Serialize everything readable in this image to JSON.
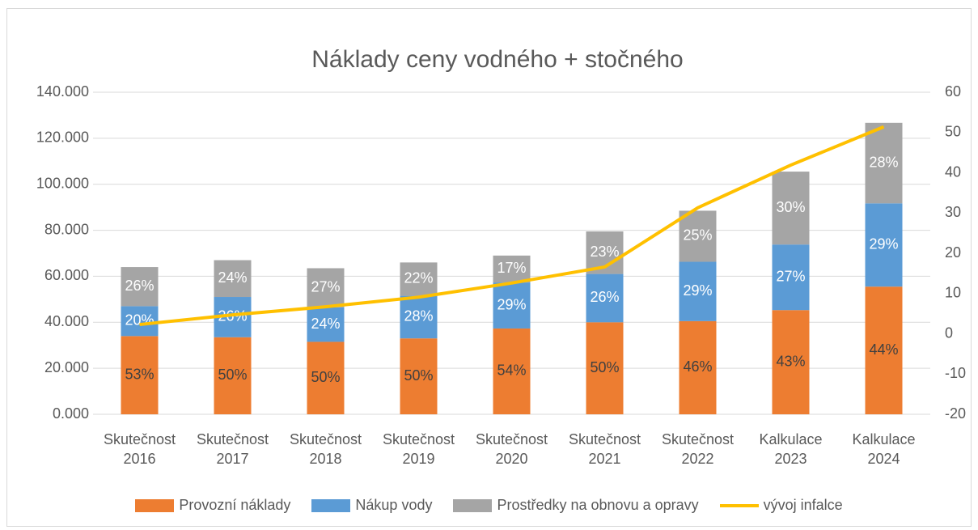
{
  "chart_data": {
    "type": "bar_line",
    "title": "Náklady ceny vodného + stočného",
    "categories": [
      "Skutečnost 2016",
      "Skutečnost 2017",
      "Skutečnost 2018",
      "Skutečnost 2019",
      "Skutečnost 2020",
      "Skutečnost 2021",
      "Skutečnost 2022",
      "Kalkulace 2023",
      "Kalkulace 2024"
    ],
    "stacked": true,
    "grid": true,
    "legend": "bottom",
    "ylim": [
      0,
      140000
    ],
    "yticks": [
      {
        "value": 0,
        "label": "0.000"
      },
      {
        "value": 20000,
        "label": "20.000"
      },
      {
        "value": 40000,
        "label": "40.000"
      },
      {
        "value": 60000,
        "label": "60.000"
      },
      {
        "value": 80000,
        "label": "80.000"
      },
      {
        "value": 100000,
        "label": "100.000"
      },
      {
        "value": 120000,
        "label": "120.000"
      },
      {
        "value": 140000,
        "label": "140.000"
      }
    ],
    "y2lim": [
      -20,
      60
    ],
    "y2ticks": [
      -20,
      -10,
      0,
      10,
      20,
      30,
      40,
      50,
      60
    ],
    "series": [
      {
        "name": "Provozní náklady",
        "type": "bar",
        "color": "#ed7d31",
        "label_color": "#404040",
        "values": [
          34000,
          33500,
          31500,
          33000,
          37300,
          40000,
          40500,
          45300,
          55500
        ],
        "data_labels": [
          "53%",
          "50%",
          "50%",
          "50%",
          "54%",
          "50%",
          "46%",
          "43%",
          "44%"
        ]
      },
      {
        "name": "Nákup vody",
        "type": "bar",
        "color": "#5b9bd5",
        "label_color": "#ffffff",
        "values": [
          13000,
          17500,
          15000,
          18500,
          20000,
          21000,
          25800,
          28500,
          36200
        ],
        "data_labels": [
          "20%",
          "26%",
          "24%",
          "28%",
          "29%",
          "26%",
          "29%",
          "27%",
          "29%"
        ]
      },
      {
        "name": "Prostředky na obnovu a opravy",
        "type": "bar",
        "color": "#a5a5a5",
        "label_color": "#ffffff",
        "values": [
          17000,
          16000,
          17000,
          14500,
          11700,
          18500,
          22200,
          31700,
          35000
        ],
        "data_labels": [
          "26%",
          "24%",
          "27%",
          "22%",
          "17%",
          "23%",
          "25%",
          "30%",
          "28%"
        ]
      },
      {
        "name": "vývoj infalce",
        "type": "line",
        "axis": "y2",
        "color": "#ffc000",
        "values": [
          2.3,
          4.7,
          6.7,
          9.1,
          12.6,
          16.6,
          31.3,
          41.9,
          51.4
        ]
      }
    ]
  }
}
